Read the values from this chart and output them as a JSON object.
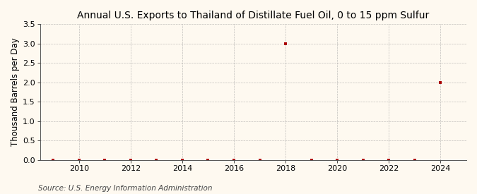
{
  "title": "Annual U.S. Exports to Thailand of Distillate Fuel Oil, 0 to 15 ppm Sulfur",
  "ylabel": "Thousand Barrels per Day",
  "source": "Source: U.S. Energy Information Administration",
  "years": [
    2009,
    2010,
    2011,
    2012,
    2013,
    2014,
    2015,
    2016,
    2017,
    2018,
    2019,
    2020,
    2021,
    2022,
    2023,
    2024
  ],
  "values": [
    0.0,
    0.0,
    0.0,
    0.0,
    0.0,
    0.0,
    0.0,
    0.0,
    0.0,
    3.0,
    0.0,
    0.0,
    0.0,
    0.0,
    0.0,
    2.0
  ],
  "marker_color": "#aa0000",
  "background_color": "#fef9f0",
  "grid_color": "#999999",
  "ylim": [
    0.0,
    3.5
  ],
  "yticks": [
    0.0,
    0.5,
    1.0,
    1.5,
    2.0,
    2.5,
    3.0,
    3.5
  ],
  "xlim": [
    2008.5,
    2025.0
  ],
  "xticks": [
    2010,
    2012,
    2014,
    2016,
    2018,
    2020,
    2022,
    2024
  ],
  "title_fontsize": 10,
  "axis_fontsize": 8.5,
  "tick_fontsize": 8,
  "source_fontsize": 7.5
}
